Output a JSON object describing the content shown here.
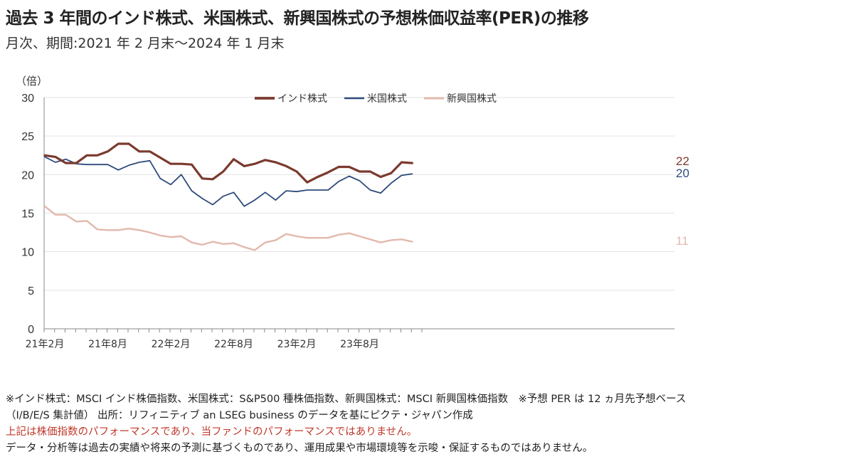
{
  "title": "過去 3 年間のインド株式、米国株式、新興国株式の予想株価収益率(PER)の推移",
  "subtitle": "月次、期間:2021 年 2 月末～2024 年 1 月末",
  "chart_data": {
    "type": "line",
    "yunit": "（倍）",
    "ylim": [
      0,
      30
    ],
    "yticks": [
      0,
      5,
      10,
      15,
      20,
      25,
      30
    ],
    "grid": true,
    "legend_position": "top-center",
    "x": [
      "21年2月",
      "21年3月",
      "21年4月",
      "21年5月",
      "21年6月",
      "21年7月",
      "21年8月",
      "21年9月",
      "21年10月",
      "21年11月",
      "21年12月",
      "22年1月",
      "22年2月",
      "22年3月",
      "22年4月",
      "22年5月",
      "22年6月",
      "22年7月",
      "22年8月",
      "22年9月",
      "22年10月",
      "22年11月",
      "22年12月",
      "23年1月",
      "23年2月",
      "23年3月",
      "23年4月",
      "23年5月",
      "23年6月",
      "23年7月",
      "23年8月",
      "23年9月",
      "23年10月",
      "23年11月",
      "23年12月",
      "24年1月"
    ],
    "xticks": [
      "21年2月",
      "21年8月",
      "22年2月",
      "22年8月",
      "23年2月",
      "23年8月"
    ],
    "series": [
      {
        "name": "インド株式",
        "color": "#7b3a2e",
        "width": 3.2,
        "end_label": "22",
        "values": [
          22.5,
          22.3,
          21.5,
          21.5,
          22.5,
          22.5,
          23.0,
          24.0,
          24.0,
          23.0,
          23.0,
          22.2,
          21.4,
          21.4,
          21.3,
          19.5,
          19.4,
          20.4,
          22.0,
          21.1,
          21.4,
          21.9,
          21.6,
          21.1,
          20.4,
          19.0,
          19.7,
          20.3,
          21.0,
          21.0,
          20.4,
          20.4,
          19.7,
          20.2,
          21.6,
          21.5
        ]
      },
      {
        "name": "米国株式",
        "color": "#2f4b7c",
        "width": 1.8,
        "end_label": "20",
        "values": [
          22.3,
          21.6,
          22.0,
          21.4,
          21.3,
          21.3,
          21.3,
          20.6,
          21.2,
          21.6,
          21.8,
          19.5,
          18.7,
          20.0,
          17.9,
          16.9,
          16.1,
          17.2,
          17.7,
          15.9,
          16.7,
          17.7,
          16.7,
          17.9,
          17.8,
          18.0,
          18.0,
          18.0,
          19.1,
          19.8,
          19.2,
          18.0,
          17.6,
          18.9,
          19.9,
          20.1
        ]
      },
      {
        "name": "新興国株式",
        "color": "#e2b9ad",
        "width": 2.4,
        "end_label": "11",
        "values": [
          15.9,
          14.8,
          14.8,
          13.9,
          14.0,
          12.9,
          12.8,
          12.8,
          13.0,
          12.8,
          12.5,
          12.1,
          11.9,
          12.0,
          11.2,
          10.9,
          11.3,
          11.0,
          11.1,
          10.6,
          10.2,
          11.2,
          11.5,
          12.3,
          12.0,
          11.8,
          11.8,
          11.8,
          12.2,
          12.4,
          12.0,
          11.6,
          11.2,
          11.5,
          11.6,
          11.3
        ]
      }
    ]
  },
  "notes": {
    "line1": "※インド株式：MSCI インド株価指数、米国株式：S&P500 種株価指数、新興国株式：MSCI 新興国株価指数　※予想 PER は 12 ヵ月先予想ベース",
    "line2": "（I/B/E/S 集計値） 出所：リフィニティブ an LSEG business のデータを基にピクテ・ジャパン作成",
    "line3": "上記は株価指数のパフォーマンスであり、当ファンドのパフォーマンスではありません。",
    "line4": "データ・分析等は過去の実績や将来の予測に基づくものであり、運用成果や市場環境等を示唆・保証するものではありません。"
  }
}
